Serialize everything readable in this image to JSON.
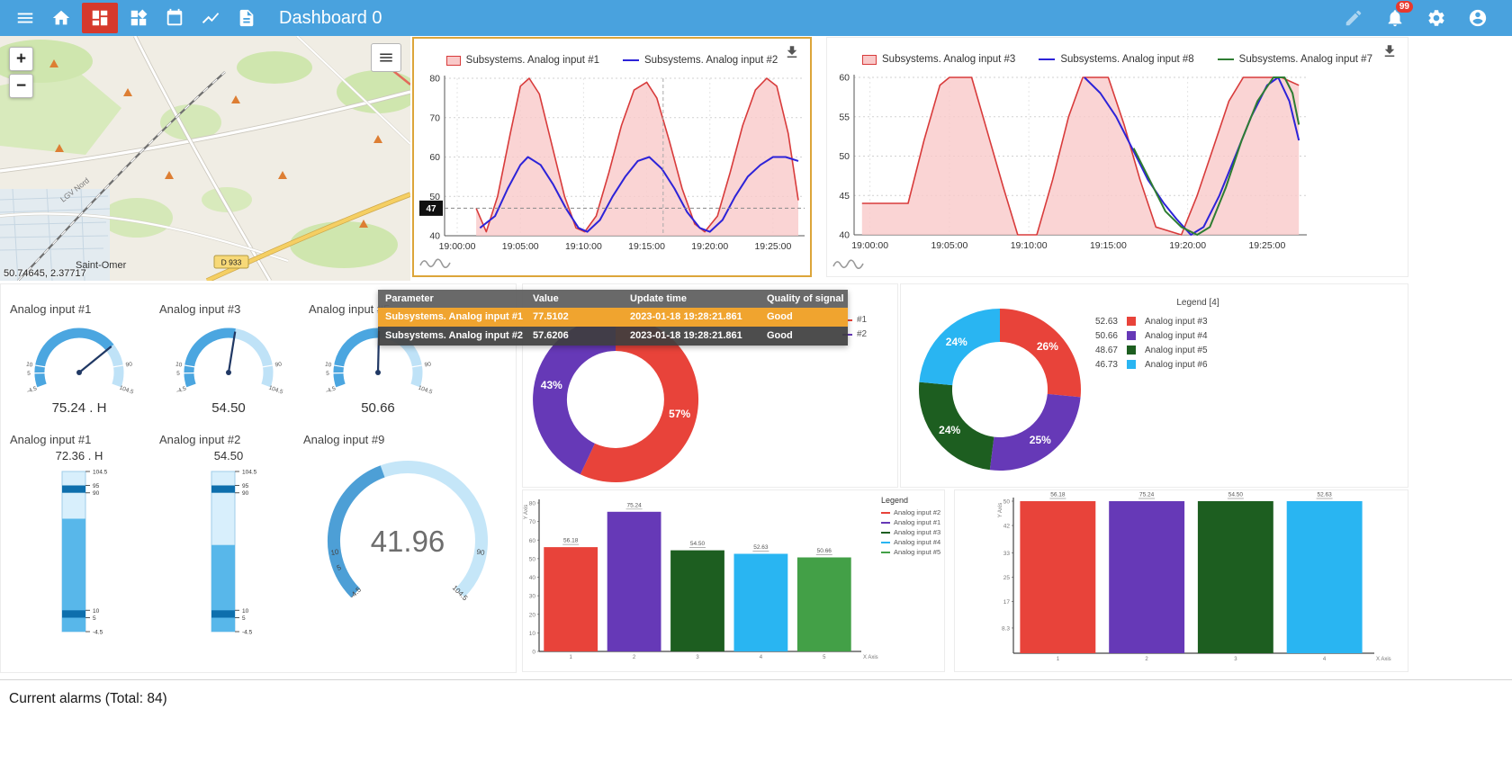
{
  "topbar": {
    "title": "Dashboard 0",
    "badge_count": "99"
  },
  "map": {
    "coords": "50.74645, 2.37717",
    "city": "Saint-Omer",
    "road_badge": "D 933",
    "rail": "LGV Nord",
    "zoom_in": "+",
    "zoom_out": "−"
  },
  "tooltip": {
    "headers": [
      "Parameter",
      "Value",
      "Update time",
      "Quality of signal"
    ],
    "rows": [
      {
        "parameter": "Subsystems. Analog input #1",
        "value": "77.5102",
        "update_time": "2023-01-18 19:28:21.861",
        "quality": "Good",
        "highlight": true
      },
      {
        "parameter": "Subsystems. Analog input #2",
        "value": "57.6206",
        "update_time": "2023-01-18 19:28:21.861",
        "quality": "Good",
        "highlight": false
      }
    ]
  },
  "alarms": {
    "text": "Current alarms (Total: 84)"
  },
  "chart_data": [
    {
      "type": "line",
      "legend": [
        {
          "label": "Subsystems. Analog input #1",
          "color": "#d83b3b",
          "fill": "#f9c9c9"
        },
        {
          "label": "Subsystems. Analog input #2",
          "color": "#2d23d8"
        }
      ],
      "ylim": [
        40,
        80
      ],
      "yticks": [
        40,
        50,
        60,
        70,
        80
      ],
      "xlim": [
        -1,
        27.5
      ],
      "xticks": [
        {
          "v": 0,
          "label": "19:00:00"
        },
        {
          "v": 5,
          "label": "19:05:00"
        },
        {
          "v": 10,
          "label": "19:10:00"
        },
        {
          "v": 15,
          "label": "19:15:00"
        },
        {
          "v": 20,
          "label": "19:20:00"
        },
        {
          "v": 25,
          "label": "19:25:00"
        }
      ],
      "crosshair": {
        "x": 16.3,
        "y": 47,
        "y_label": "47"
      },
      "series": [
        {
          "name": "Subsystems. Analog input #1",
          "color": "#d83b3b",
          "fill": "#f9c9c9",
          "area": true,
          "points": [
            [
              1.5,
              47
            ],
            [
              2.3,
              41
            ],
            [
              3.2,
              50
            ],
            [
              4.2,
              66
            ],
            [
              5,
              78
            ],
            [
              5.7,
              80
            ],
            [
              6.5,
              76
            ],
            [
              7.5,
              63
            ],
            [
              8.5,
              50
            ],
            [
              9.4,
              42
            ],
            [
              10.1,
              41
            ],
            [
              11,
              45
            ],
            [
              12,
              56
            ],
            [
              13,
              68
            ],
            [
              14,
              77
            ],
            [
              15,
              79
            ],
            [
              15.8,
              75
            ],
            [
              16.8,
              64
            ],
            [
              17.8,
              52
            ],
            [
              18.8,
              43
            ],
            [
              19.6,
              41
            ],
            [
              20.6,
              45
            ],
            [
              21.6,
              56
            ],
            [
              22.6,
              68
            ],
            [
              23.6,
              77
            ],
            [
              24.5,
              80
            ],
            [
              25.3,
              78
            ],
            [
              26.2,
              66
            ],
            [
              27,
              49
            ]
          ]
        },
        {
          "name": "Subsystems. Analog input #2",
          "color": "#2d23d8",
          "points": [
            [
              1.8,
              42
            ],
            [
              3,
              45
            ],
            [
              4,
              52
            ],
            [
              5,
              58
            ],
            [
              5.6,
              60
            ],
            [
              6.6,
              58
            ],
            [
              7.6,
              53
            ],
            [
              8.6,
              47
            ],
            [
              9.6,
              42
            ],
            [
              10.3,
              41
            ],
            [
              11.3,
              44
            ],
            [
              12.3,
              50
            ],
            [
              13.3,
              55
            ],
            [
              14.3,
              59
            ],
            [
              15.2,
              60
            ],
            [
              16.2,
              57
            ],
            [
              17.2,
              52
            ],
            [
              18.2,
              46
            ],
            [
              19.2,
              42
            ],
            [
              20,
              41
            ],
            [
              21,
              44
            ],
            [
              22,
              50
            ],
            [
              23,
              55
            ],
            [
              24,
              58
            ],
            [
              25,
              60
            ],
            [
              26,
              60
            ],
            [
              27,
              59
            ]
          ]
        }
      ]
    },
    {
      "type": "line",
      "legend": [
        {
          "label": "Subsystems. Analog input #3",
          "color": "#d83b3b",
          "fill": "#f9c9c9"
        },
        {
          "label": "Subsystems. Analog input #8",
          "color": "#2d23d8"
        },
        {
          "label": "Subsystems. Analog input #7",
          "color": "#2e7d32"
        }
      ],
      "ylim": [
        40,
        60
      ],
      "yticks": [
        40,
        45,
        50,
        55,
        60
      ],
      "xlim": [
        -1,
        27.5
      ],
      "xticks": [
        {
          "v": 0,
          "label": "19:00:00"
        },
        {
          "v": 5,
          "label": "19:05:00"
        },
        {
          "v": 10,
          "label": "19:10:00"
        },
        {
          "v": 15,
          "label": "19:15:00"
        },
        {
          "v": 20,
          "label": "19:20:00"
        },
        {
          "v": 25,
          "label": "19:25:00"
        }
      ],
      "series": [
        {
          "name": "Subsystems. Analog input #3",
          "color": "#d83b3b",
          "fill": "#f9c9c9",
          "area": true,
          "points": [
            [
              -0.5,
              44
            ],
            [
              2.4,
              44
            ],
            [
              3.4,
              52
            ],
            [
              4.4,
              59
            ],
            [
              5,
              60
            ],
            [
              6.4,
              60
            ],
            [
              7.4,
              53
            ],
            [
              8.4,
              46
            ],
            [
              9.3,
              40
            ],
            [
              10.5,
              40
            ],
            [
              11.5,
              47
            ],
            [
              12.5,
              55
            ],
            [
              13.4,
              60
            ],
            [
              15,
              60
            ],
            [
              16,
              54
            ],
            [
              17,
              47
            ],
            [
              18,
              41
            ],
            [
              19.6,
              40
            ],
            [
              20.6,
              45
            ],
            [
              21.6,
              51
            ],
            [
              22.6,
              57
            ],
            [
              23.5,
              60
            ],
            [
              25.9,
              60
            ],
            [
              27,
              59
            ]
          ]
        },
        {
          "name": "Subsystems. Analog input #8",
          "color": "#2d23d8",
          "points": [
            [
              13.5,
              60
            ],
            [
              14.5,
              58
            ],
            [
              15.5,
              55
            ],
            [
              16.5,
              51
            ],
            [
              17.5,
              47
            ],
            [
              18.5,
              44
            ],
            [
              19.3,
              42
            ],
            [
              20.2,
              40
            ],
            [
              21,
              41
            ],
            [
              22,
              45
            ],
            [
              23,
              50
            ],
            [
              24,
              55
            ],
            [
              25,
              59
            ],
            [
              25.7,
              60
            ],
            [
              26.4,
              57
            ],
            [
              27,
              52
            ]
          ]
        },
        {
          "name": "Subsystems. Analog input #7",
          "color": "#2e7d32",
          "points": [
            [
              16.6,
              51
            ],
            [
              17.6,
              47
            ],
            [
              18.6,
              43
            ],
            [
              19.6,
              41
            ],
            [
              20.6,
              40
            ],
            [
              21.4,
              41
            ],
            [
              22.4,
              46
            ],
            [
              23.4,
              52
            ],
            [
              24.4,
              57
            ],
            [
              25.4,
              60
            ],
            [
              26.1,
              60
            ],
            [
              26.6,
              58
            ],
            [
              27,
              54
            ]
          ]
        }
      ]
    },
    {
      "type": "pie",
      "labels": [
        "#1",
        "#2"
      ],
      "values": [
        57,
        43
      ],
      "slice_labels": [
        "57%",
        "43%"
      ],
      "colors": [
        "#e8433a",
        "#6639b7"
      ],
      "legend": [
        {
          "label": "#1",
          "color": "#e8433a"
        },
        {
          "label": "#2",
          "color": "#6639b7"
        }
      ]
    },
    {
      "type": "pie",
      "legend_title": "Legend [4]",
      "labels": [
        "Analog input #3",
        "Analog input #4",
        "Analog input #5",
        "Analog input #6"
      ],
      "values": [
        52.63,
        50.66,
        48.67,
        46.73
      ],
      "legend_values": [
        "52.63",
        "50.66",
        "48.67",
        "46.73"
      ],
      "slice_labels": [
        "26%",
        "25%",
        "24%",
        "24%"
      ],
      "colors": [
        "#e8433a",
        "#6639b7",
        "#1d5e20",
        "#29b5f2"
      ]
    },
    {
      "type": "bar",
      "categories": [
        "1",
        "2",
        "3",
        "4",
        "5"
      ],
      "values": [
        56.18,
        75.24,
        54.5,
        52.63,
        50.66
      ],
      "value_labels": [
        "56.18",
        "75.24",
        "54.50",
        "52.63",
        "50.66"
      ],
      "colors": [
        "#e8433a",
        "#6639b7",
        "#1d5e20",
        "#29b5f2",
        "#43a047"
      ],
      "ylim": [
        0,
        80
      ],
      "yticks": [
        0,
        10,
        20,
        30,
        40,
        50,
        60,
        70,
        80
      ],
      "xlabel": "X Axis",
      "ylabel": "Y Axis",
      "legend_title": "Legend",
      "legend": [
        {
          "label": "Analog input #2",
          "color": "#e8433a"
        },
        {
          "label": "Analog input #1",
          "color": "#6639b7"
        },
        {
          "label": "Analog input #3",
          "color": "#1d5e20"
        },
        {
          "label": "Analog input #4",
          "color": "#29b5f2"
        },
        {
          "label": "Analog input #5",
          "color": "#43a047"
        }
      ]
    },
    {
      "type": "bar",
      "categories": [
        "1",
        "2",
        "3",
        "4"
      ],
      "values": [
        56.18,
        75.24,
        54.5,
        52.63
      ],
      "value_labels": [
        "56.18",
        "75.24",
        "54.50",
        "52.63"
      ],
      "colors": [
        "#e8433a",
        "#6639b7",
        "#1d5e20",
        "#29b5f2"
      ],
      "ylim": [
        0,
        50
      ],
      "yticks": [
        8.3,
        17,
        25,
        33,
        42,
        50
      ],
      "xlabel": "X Axis",
      "ylabel": "Y Axis",
      "clip": true
    }
  ],
  "gauges": {
    "radial": [
      {
        "label": "Analog input #1",
        "display": "75.24 . H",
        "value": 75.24,
        "min": -4.5,
        "max": 104.5,
        "ticks": [
          -4.5,
          5,
          10,
          90,
          104.5
        ]
      },
      {
        "label": "Analog input #3",
        "display": "54.50",
        "value": 54.5,
        "min": -4.5,
        "max": 104.5,
        "ticks": [
          -4.5,
          5,
          10,
          90,
          104.5
        ]
      },
      {
        "label": "Analog input #5",
        "display": "50.66",
        "value": 50.66,
        "min": -4.5,
        "max": 104.5,
        "ticks": [
          -4.5,
          5,
          10,
          90,
          104.5
        ]
      }
    ],
    "linear": [
      {
        "label": "Analog input #1",
        "display": "72.36 . H",
        "value": 72.36,
        "min": -4.5,
        "max": 104.5,
        "ticks": [
          104.5,
          95,
          90,
          10,
          5,
          -4.5
        ]
      },
      {
        "label": "Analog input #2",
        "display": "54.50",
        "value": 54.5,
        "min": -4.5,
        "max": 104.5,
        "ticks": [
          104.5,
          95,
          90,
          10,
          5,
          -4.5
        ]
      }
    ],
    "ring": {
      "label": "Analog input #9",
      "display": "41.96",
      "value": 41.96,
      "min": -4.5,
      "max": 104.5,
      "ticks_left": [
        -4.5,
        5,
        10
      ],
      "ticks_right": [
        90,
        104.5
      ]
    }
  }
}
